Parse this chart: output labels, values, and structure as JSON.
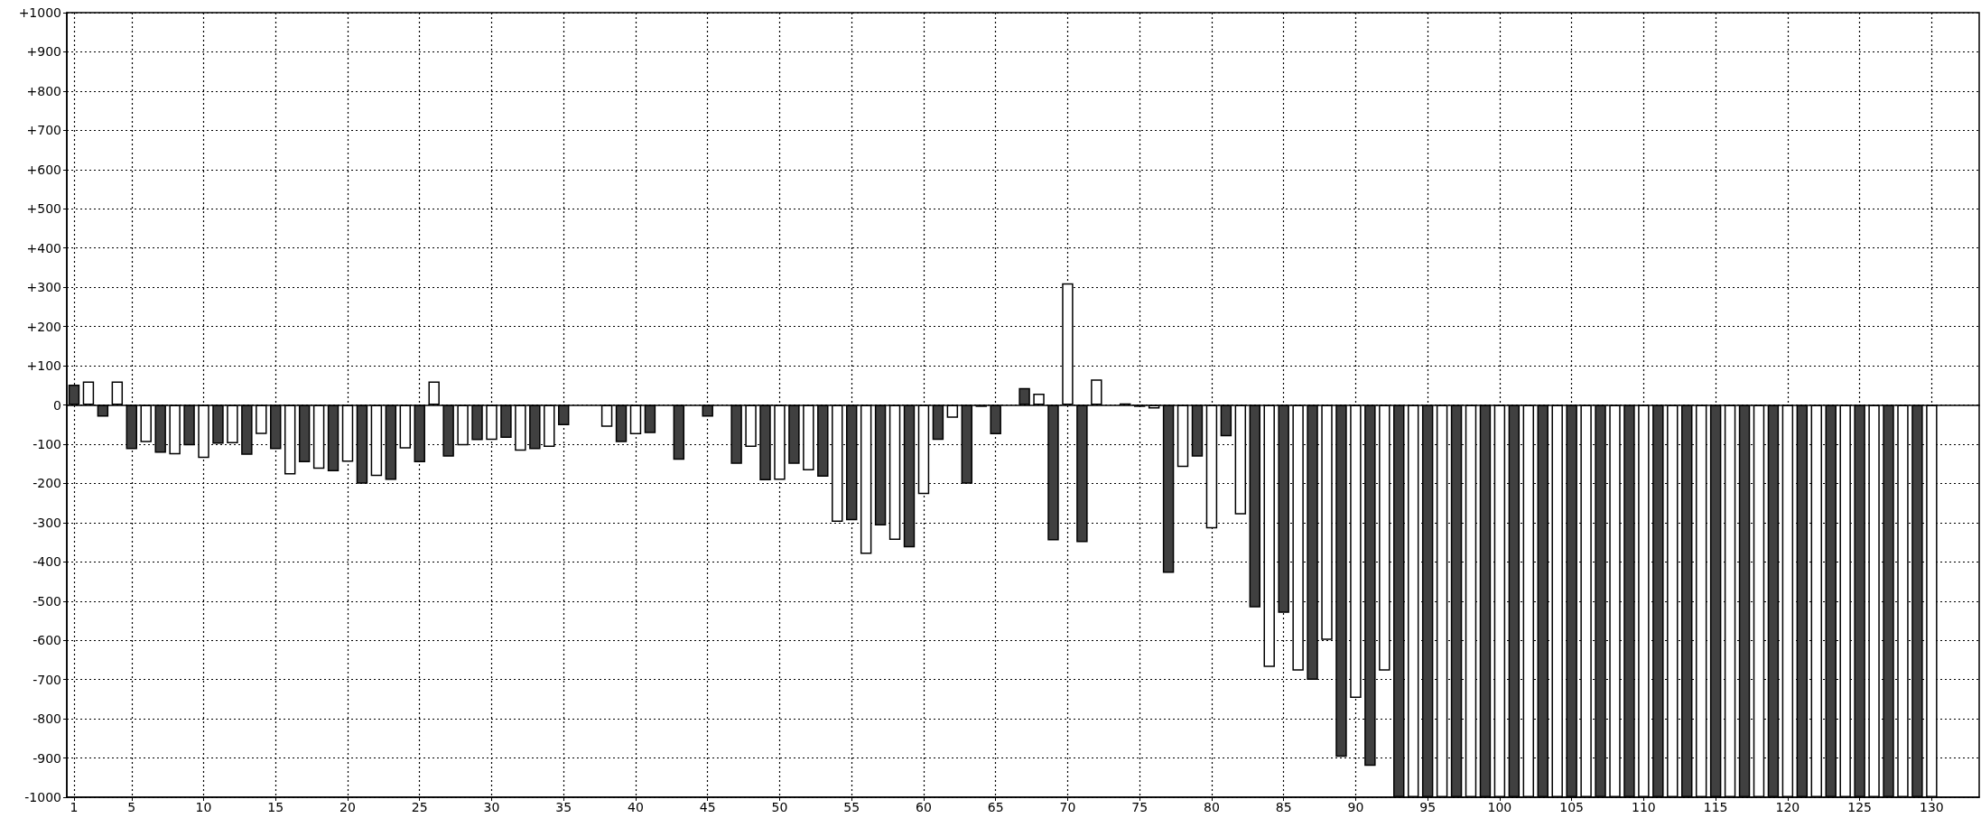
{
  "chart_data": {
    "type": "bar",
    "xlim": [
      0.5,
      133.3
    ],
    "xticks": [
      1,
      5,
      10,
      15,
      20,
      25,
      30,
      35,
      40,
      45,
      50,
      55,
      60,
      65,
      70,
      75,
      80,
      85,
      90,
      95,
      100,
      105,
      110,
      115,
      120,
      125,
      130
    ],
    "ylim": [
      -1000,
      1000
    ],
    "yticks": [
      -1000,
      -900,
      -800,
      -700,
      -600,
      -500,
      -400,
      -300,
      -200,
      -100,
      0,
      {
        "value": 100,
        "label": "+100"
      },
      {
        "value": 200,
        "label": "+200"
      },
      {
        "value": 300,
        "label": "+300"
      },
      {
        "value": 400,
        "label": "+400"
      },
      {
        "value": 500,
        "label": "+500"
      },
      {
        "value": 600,
        "label": "+600"
      },
      {
        "value": 700,
        "label": "+700"
      },
      {
        "value": 800,
        "label": "+800"
      },
      {
        "value": 900,
        "label": "+900"
      },
      {
        "value": 1000,
        "label": "+1000"
      }
    ],
    "grid": true,
    "series": [
      {
        "color": "#404040",
        "x": [
          1,
          3,
          5,
          7,
          9,
          11,
          13,
          15,
          17,
          19,
          21,
          23,
          25,
          27,
          29,
          31,
          33,
          35,
          37,
          39,
          41,
          43,
          45,
          47,
          49,
          51,
          53,
          55,
          57,
          59,
          61,
          63,
          65,
          67,
          69,
          71,
          73,
          75,
          77,
          79,
          81,
          83,
          85,
          87,
          89,
          91,
          93,
          95,
          97,
          99,
          101,
          103,
          105,
          107,
          109,
          111,
          113,
          115,
          117,
          119,
          121,
          123,
          125,
          127,
          129
        ],
        "values": [
          52,
          -30,
          -113,
          -122,
          -103,
          -99,
          -127,
          -113,
          -146,
          -169,
          -201,
          -191,
          -146,
          -132,
          -90,
          -84,
          -113,
          -52,
          null,
          -95,
          -72,
          -140,
          -30,
          -150,
          -192,
          -150,
          -183,
          -294,
          -307,
          -363,
          -89,
          -201,
          -75,
          43,
          -345,
          -350,
          null,
          -5,
          -428,
          -132,
          -80,
          -516,
          -530,
          -701,
          -897,
          -920,
          -1000,
          -1000,
          -1000,
          -1000,
          -1000,
          -1000,
          -1000,
          -1000,
          -1000,
          -1000,
          -1000,
          -1000,
          -1000,
          -1000,
          -1000,
          -1000,
          -1000,
          -1000,
          -1000
        ]
      },
      {
        "color": "#ffffff",
        "x": [
          2,
          4,
          6,
          8,
          10,
          12,
          14,
          16,
          18,
          20,
          22,
          24,
          26,
          28,
          30,
          32,
          34,
          36,
          38,
          40,
          42,
          44,
          46,
          48,
          50,
          52,
          54,
          56,
          58,
          60,
          62,
          64,
          66,
          68,
          70,
          72,
          74,
          76,
          78,
          80,
          82,
          84,
          86,
          88,
          90,
          92,
          94,
          96,
          98,
          100,
          102,
          104,
          106,
          108,
          110,
          112,
          114,
          116,
          118,
          120,
          122,
          124,
          126,
          128,
          130
        ],
        "values": [
          60,
          60,
          -95,
          -126,
          -135,
          -98,
          -74,
          -177,
          -163,
          -145,
          -181,
          -111,
          60,
          -103,
          -89,
          -117,
          -107,
          null,
          -56,
          -75,
          null,
          null,
          null,
          -107,
          -191,
          -167,
          -298,
          -380,
          -344,
          -227,
          -33,
          -5,
          null,
          29,
          310,
          65,
          4,
          -9,
          -158,
          -315,
          -279,
          -668,
          -677,
          -599,
          -747,
          -677,
          -1000,
          -1000,
          -1000,
          -1000,
          -1000,
          -1000,
          -1000,
          -1000,
          -1000,
          -1000,
          -1000,
          -1000,
          -1000,
          -1000,
          -1000,
          -1000,
          -1000,
          -1000,
          -1000
        ]
      }
    ]
  }
}
